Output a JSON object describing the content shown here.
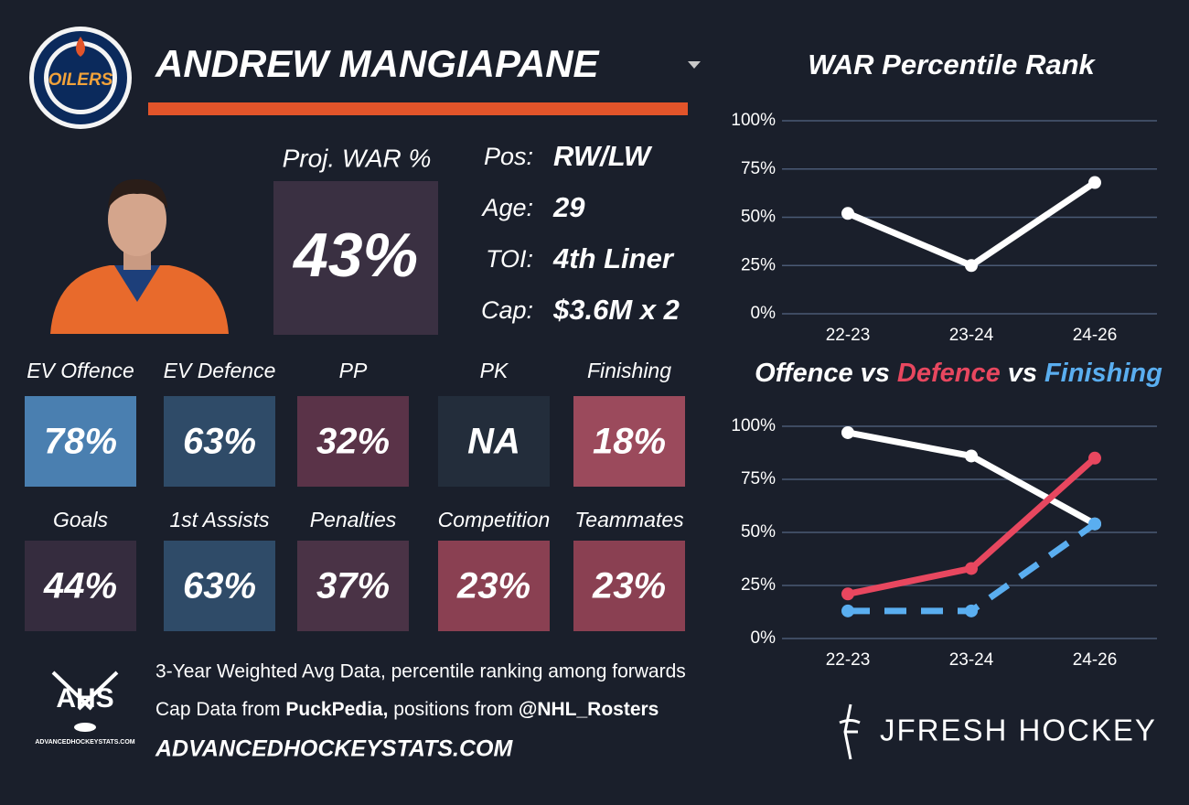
{
  "header": {
    "player": "ANDREW MANGIAPANE"
  },
  "logos": {
    "team": "OILERS",
    "ahs": "AHS",
    "ahs_site": "ADVANCEDHOCKEYSTATS.COM",
    "brand": "JFRESH HOCKEY"
  },
  "proj_war": {
    "label": "Proj. WAR %",
    "value": "43%"
  },
  "info": [
    {
      "label": "Pos:",
      "value": "RW/LW"
    },
    {
      "label": "Age:",
      "value": "29"
    },
    {
      "label": "TOI:",
      "value": "4th Liner"
    },
    {
      "label": "Cap:",
      "value": "$3.6M x 2"
    }
  ],
  "tiles": [
    {
      "label": "EV Offence",
      "value": "78%",
      "color": "#4a7fb0"
    },
    {
      "label": "EV Defence",
      "value": "63%",
      "color": "#2f4b68"
    },
    {
      "label": "PP",
      "value": "32%",
      "color": "#5a3348"
    },
    {
      "label": "PK",
      "value": "NA",
      "color": "#232d3b"
    },
    {
      "label": "Finishing",
      "value": "18%",
      "color": "#9b4a5c"
    },
    {
      "label": "Goals",
      "value": "44%",
      "color": "#352c3e"
    },
    {
      "label": "1st Assists",
      "value": "63%",
      "color": "#2f4b68"
    },
    {
      "label": "Penalties",
      "value": "37%",
      "color": "#4a3346"
    },
    {
      "label": "Competition",
      "value": "23%",
      "color": "#8a4052"
    },
    {
      "label": "Teammates",
      "value": "23%",
      "color": "#8a4052"
    }
  ],
  "footer": {
    "line1": "3-Year Weighted Avg Data, percentile ranking among forwards",
    "line2": [
      {
        "text": "Cap Data from ",
        "bold": false
      },
      {
        "text": "PuckPedia,",
        "bold": true
      },
      {
        "text": " positions from ",
        "bold": false
      },
      {
        "text": "@NHL_Rosters",
        "bold": true
      }
    ],
    "site": "ADVANCEDHOCKEYSTATS.COM"
  },
  "chart_data": [
    {
      "type": "line",
      "title": "WAR Percentile Rank",
      "categories": [
        "22-23",
        "23-24",
        "24-26"
      ],
      "values": [
        52,
        25,
        68
      ],
      "color": "#ffffff",
      "ylim": [
        0,
        100
      ],
      "yticks": [
        {
          "value": 0,
          "label": "0%"
        },
        {
          "value": 25,
          "label": "25%"
        },
        {
          "value": 50,
          "label": "50%"
        },
        {
          "value": 75,
          "label": "75%"
        },
        {
          "value": 100,
          "label": "100%"
        }
      ],
      "grid": true
    },
    {
      "type": "line",
      "title_sep": "vs",
      "categories": [
        "22-23",
        "23-24",
        "24-26"
      ],
      "series": [
        {
          "name": "Offence",
          "color": "#ffffff",
          "values": [
            97,
            86,
            54
          ],
          "dash": false
        },
        {
          "name": "Defence",
          "color": "#e8475f",
          "values": [
            21,
            33,
            85
          ],
          "dash": false
        },
        {
          "name": "Finishing",
          "color": "#5aaef0",
          "values": [
            13,
            13,
            54
          ],
          "dash": true
        }
      ],
      "ylim": [
        0,
        100
      ],
      "yticks": [
        {
          "value": 0,
          "label": "0%"
        },
        {
          "value": 25,
          "label": "25%"
        },
        {
          "value": 50,
          "label": "50%"
        },
        {
          "value": 75,
          "label": "75%"
        },
        {
          "value": 100,
          "label": "100%"
        }
      ],
      "grid": true
    }
  ]
}
